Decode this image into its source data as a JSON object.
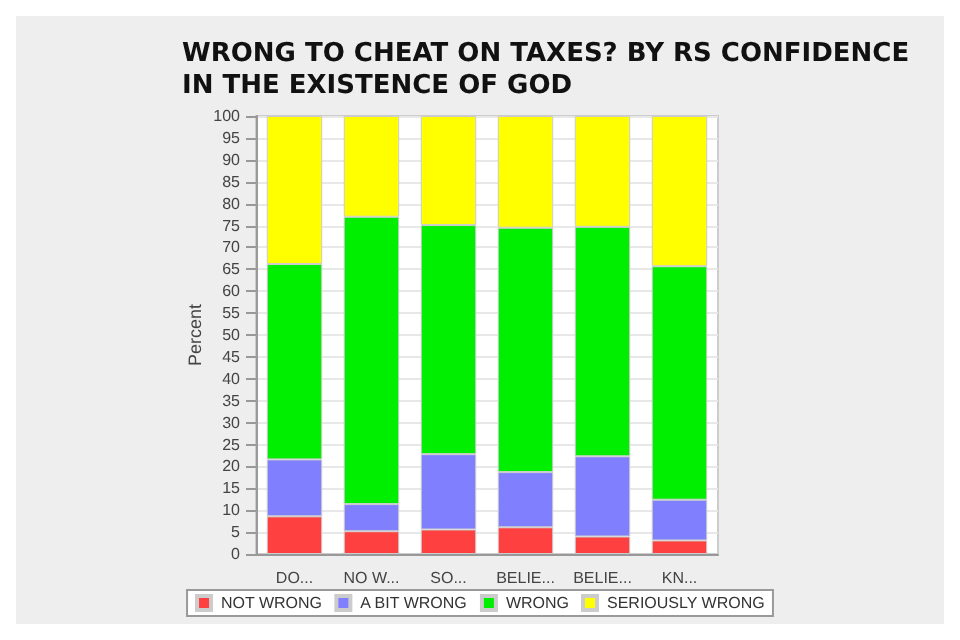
{
  "chart_data": {
    "type": "bar",
    "title": "WRONG TO CHEAT ON TAXES? BY RS CONFIDENCE\nIN THE EXISTENCE OF GOD",
    "ylabel": "Percent",
    "categories": [
      "DO...",
      "NO W...",
      "SO...",
      "BELIE...",
      "BELIE...",
      "KN..."
    ],
    "stacked": true,
    "series": [
      {
        "name": "NOT WRONG",
        "color": "#ff4040",
        "values": [
          8.6,
          5.2,
          5.6,
          6.1,
          4.0,
          3.1
        ]
      },
      {
        "name": "A BIT WRONG",
        "color": "#8080ff",
        "values": [
          13.0,
          6.2,
          17.2,
          12.6,
          18.3,
          9.3
        ]
      },
      {
        "name": "WRONG",
        "color": "#00ee00",
        "values": [
          44.6,
          65.6,
          52.3,
          55.8,
          52.4,
          53.3
        ]
      },
      {
        "name": "SERIOUSLY WRONG",
        "color": "#ffff00",
        "values": [
          33.8,
          23.0,
          24.9,
          25.5,
          25.3,
          34.3
        ]
      }
    ],
    "ylim": [
      0,
      100
    ],
    "yticks": [
      0,
      5,
      10,
      15,
      20,
      25,
      30,
      35,
      40,
      45,
      50,
      55,
      60,
      65,
      70,
      75,
      80,
      85,
      90,
      95,
      100
    ],
    "grid": "y",
    "legend": "bottom"
  }
}
